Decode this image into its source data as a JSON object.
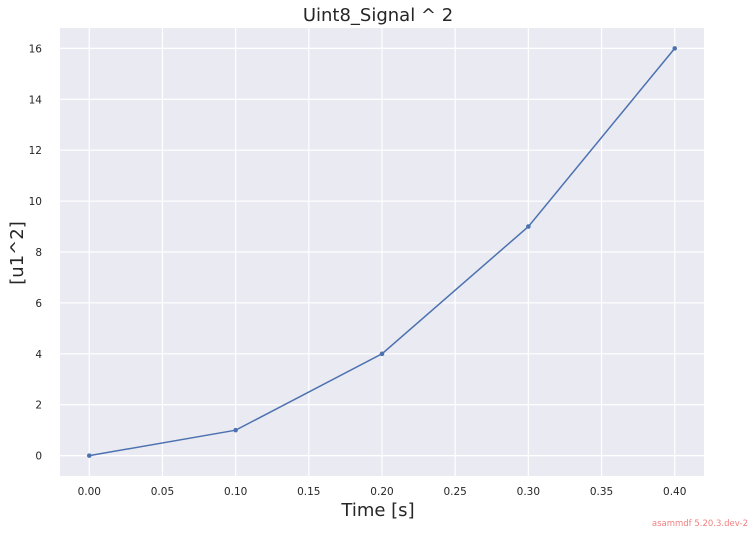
{
  "chart_data": {
    "type": "line",
    "title": "Uint8_Signal ^ 2",
    "xlabel": "Time [s]",
    "ylabel": "[u1^2]",
    "x": [
      0.0,
      0.1,
      0.2,
      0.3,
      0.4
    ],
    "series": [
      {
        "values": [
          0,
          1,
          4,
          9,
          16
        ],
        "color": "#4c72b0",
        "marker": "dot"
      }
    ],
    "xlim": [
      -0.02,
      0.42
    ],
    "ylim": [
      -0.8,
      16.8
    ],
    "xticks": [
      "0.00",
      "0.05",
      "0.10",
      "0.15",
      "0.20",
      "0.25",
      "0.30",
      "0.35",
      "0.40"
    ],
    "yticks": [
      "0",
      "2",
      "4",
      "6",
      "8",
      "10",
      "12",
      "14",
      "16"
    ],
    "grid": true,
    "background": "#eaeaf2",
    "grid_color": "#ffffff"
  },
  "footer": {
    "version_text": "asammdf 5.20.3.dev-2"
  }
}
